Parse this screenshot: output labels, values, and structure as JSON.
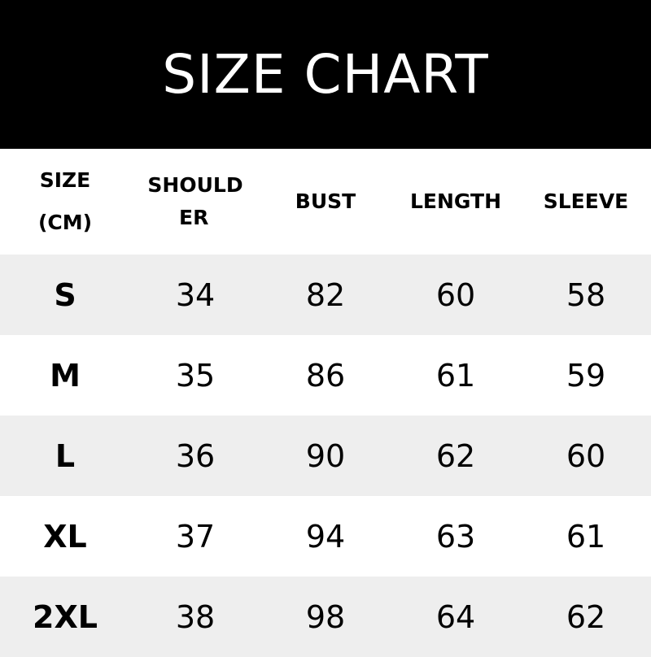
{
  "title": "SIZE CHART",
  "headers": {
    "size_line1": "SIZE",
    "size_line2": "(CM)",
    "shoulder_line1": "SHOULD",
    "shoulder_line2": "ER",
    "bust": "BUST",
    "length": "LENGTH",
    "sleeve": "SLEEVE"
  },
  "rows": [
    {
      "size": "S",
      "shoulder": "34",
      "bust": "82",
      "length": "60",
      "sleeve": "58"
    },
    {
      "size": "M",
      "shoulder": "35",
      "bust": "86",
      "length": "61",
      "sleeve": "59"
    },
    {
      "size": "L",
      "shoulder": "36",
      "bust": "90",
      "length": "62",
      "sleeve": "60"
    },
    {
      "size": "XL",
      "shoulder": "37",
      "bust": "94",
      "length": "63",
      "sleeve": "61"
    },
    {
      "size": "2XL",
      "shoulder": "38",
      "bust": "98",
      "length": "64",
      "sleeve": "62"
    }
  ],
  "colors": {
    "banner": "#000000",
    "stripe": "#eeeeee",
    "text": "#000000"
  }
}
